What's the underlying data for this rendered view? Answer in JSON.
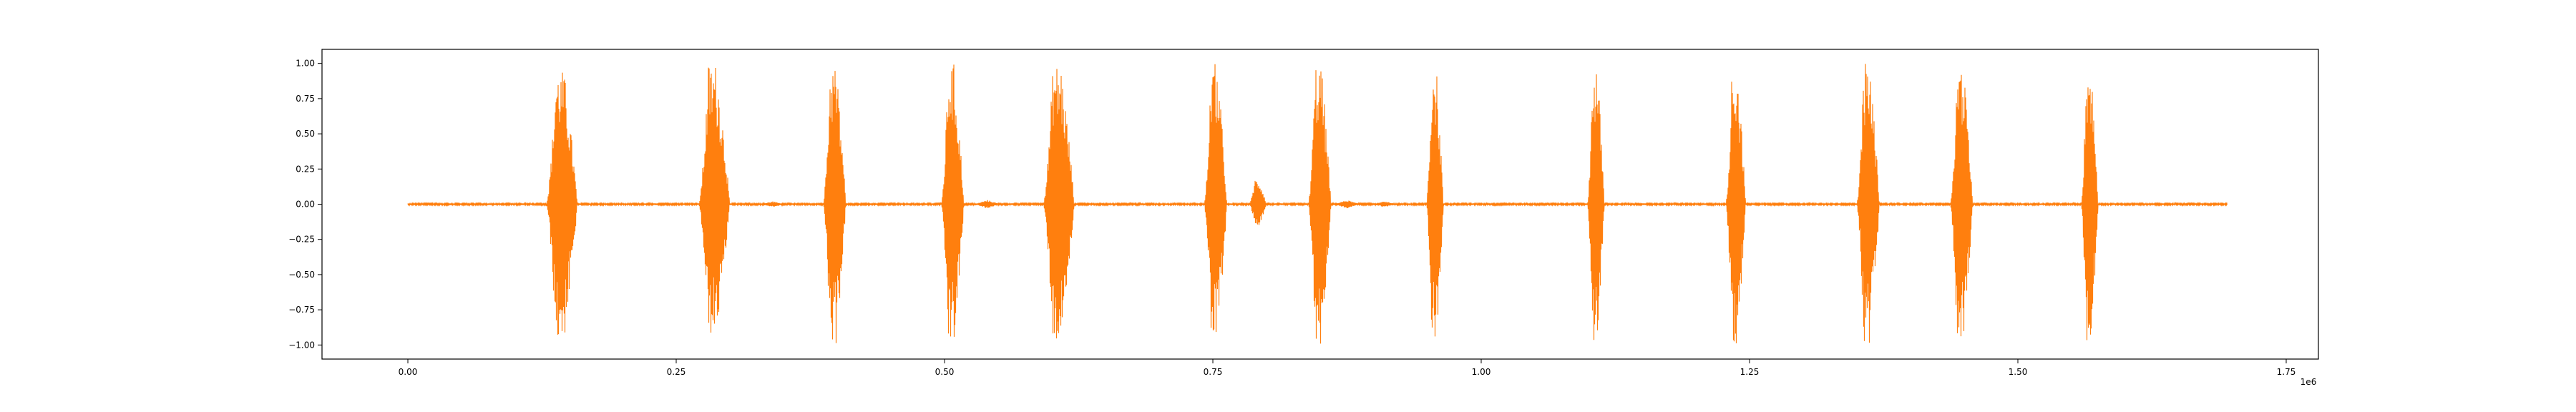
{
  "chart_data": {
    "type": "line",
    "title": "",
    "xlabel": "",
    "ylabel": "",
    "x_offset_label": "1e6",
    "xlim": [
      -0.08,
      1.78
    ],
    "ylim": [
      -1.1,
      1.1
    ],
    "x_ticks": [
      0.0,
      0.25,
      0.5,
      0.75,
      1.0,
      1.25,
      1.5,
      1.75
    ],
    "x_tick_labels": [
      "0.00",
      "0.25",
      "0.50",
      "0.75",
      "1.00",
      "1.25",
      "1.50",
      "1.75"
    ],
    "y_ticks": [
      1.0,
      0.75,
      0.5,
      0.25,
      0.0,
      -0.25,
      -0.5,
      -0.75,
      -1.0
    ],
    "y_tick_labels": [
      "1.00",
      "0.75",
      "0.50",
      "0.25",
      "0.00",
      "−0.25",
      "−0.50",
      "−0.75",
      "−1.00"
    ],
    "grid": false,
    "legend": "none",
    "color": "#ff7f0e",
    "signal_range_1e6": [
      0.0,
      1.695
    ],
    "bursts": [
      {
        "center": 0.14,
        "width": 0.022,
        "pos_peak": 0.95,
        "neg_peak": -0.98
      },
      {
        "center": 0.282,
        "width": 0.022,
        "pos_peak": 1.0,
        "neg_peak": -0.93
      },
      {
        "center": 0.395,
        "width": 0.016,
        "pos_peak": 1.0,
        "neg_peak": -1.0
      },
      {
        "center": 0.505,
        "width": 0.016,
        "pos_peak": 1.0,
        "neg_peak": -1.0
      },
      {
        "center": 0.603,
        "width": 0.022,
        "pos_peak": 1.0,
        "neg_peak": -0.98
      },
      {
        "center": 0.75,
        "width": 0.016,
        "pos_peak": 1.0,
        "neg_peak": -1.0
      },
      {
        "center": 0.79,
        "width": 0.012,
        "pos_peak": 0.18,
        "neg_peak": -0.15
      },
      {
        "center": 0.847,
        "width": 0.016,
        "pos_peak": 1.0,
        "neg_peak": -1.0
      },
      {
        "center": 0.955,
        "width": 0.012,
        "pos_peak": 1.0,
        "neg_peak": -1.0
      },
      {
        "center": 1.105,
        "width": 0.012,
        "pos_peak": 1.0,
        "neg_peak": -1.0
      },
      {
        "center": 1.235,
        "width": 0.014,
        "pos_peak": 1.0,
        "neg_peak": -1.0
      },
      {
        "center": 1.358,
        "width": 0.016,
        "pos_peak": 1.0,
        "neg_peak": -1.0
      },
      {
        "center": 1.445,
        "width": 0.016,
        "pos_peak": 1.0,
        "neg_peak": -1.0
      },
      {
        "center": 1.565,
        "width": 0.012,
        "pos_peak": 1.0,
        "neg_peak": -1.0
      }
    ],
    "small_wiggles": [
      {
        "center": 0.34,
        "amp": 0.02
      },
      {
        "center": 0.54,
        "amp": 0.03
      },
      {
        "center": 0.875,
        "amp": 0.03
      },
      {
        "center": 0.91,
        "amp": 0.02
      }
    ]
  }
}
